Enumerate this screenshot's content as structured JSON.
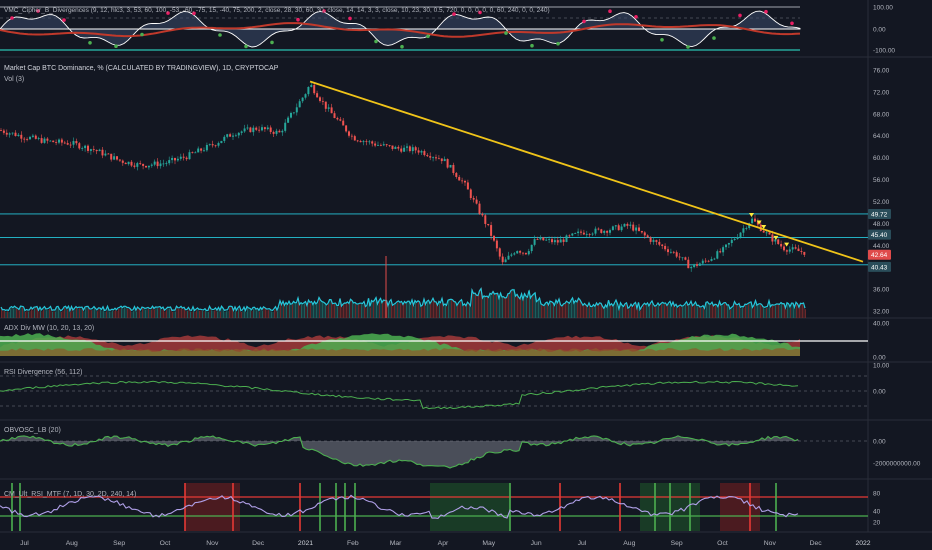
{
  "main": {
    "title": "Market Cap BTC Dominance, % (CALCULATED BY TRADINGVIEW), 1D, CRYPTOCAP",
    "vol_label": "Vol (3)"
  },
  "indicators": {
    "cipher": "VMC_Cipher_B_Divergences (9, 12, hlc3, 3, 53, 60, 100, -53, -60, -75, 15, -40, 75, 200, 2, close, 28, 30, 60, 30, close, 14, 14, 3, 3, close, 10, 23, 30, 0.5, 720, 0, 0, 0, 0, 0, 60, 240, 0, 0, 240)",
    "adx": "ADX Div MW (10, 20, 13, 20)",
    "rsi_div": "RSI Divergence (56, 112)",
    "obvosc": "OBVOSC_LB (20)",
    "cm_rsi": "CM_Ult_RSI_MTF (7, 1D, 30, 2D, 240, 14)"
  },
  "price_axis": {
    "cipher_ticks": [
      "100.00",
      "0.00",
      "-100.00"
    ],
    "main_ticks": [
      "76.00",
      "72.00",
      "68.00",
      "64.00",
      "60.00",
      "56.00",
      "52.00",
      "48.00",
      "44.00",
      "40.00",
      "36.00",
      "32.00"
    ],
    "adx_ticks": [
      "40.00",
      "0.00"
    ],
    "rsi_ticks": [
      "10.00",
      "0.00"
    ],
    "obv_ticks": [
      "0.00",
      "-2000000000.00"
    ],
    "cm_ticks": [
      "80",
      "40",
      "20"
    ],
    "tags": [
      {
        "label": "49.72",
        "color": "#2a4d5a"
      },
      {
        "label": "45.40",
        "color": "#2a4d5a"
      },
      {
        "label": "42.64",
        "color": "#e04b4b"
      },
      {
        "label": "40.43",
        "color": "#2a4d5a"
      }
    ]
  },
  "time_axis": [
    "Jul",
    "Aug",
    "Sep",
    "Oct",
    "Nov",
    "Dec",
    "2021",
    "Feb",
    "Mar",
    "Apr",
    "May",
    "Jun",
    "Jul",
    "Aug",
    "Sep",
    "Oct",
    "Nov",
    "Dec",
    "2022"
  ],
  "chart_data": {
    "type": "line",
    "title": "Market Cap BTC Dominance, % (CALCULATED BY TRADINGVIEW), 1D, CRYPTOCAP",
    "x": [
      "2020-06-15",
      "2020-07-01",
      "2020-07-15",
      "2020-08-01",
      "2020-08-15",
      "2020-09-01",
      "2020-09-15",
      "2020-10-01",
      "2020-10-15",
      "2020-11-01",
      "2020-11-15",
      "2020-12-01",
      "2020-12-15",
      "2021-01-01",
      "2021-01-04",
      "2021-01-15",
      "2021-02-01",
      "2021-02-15",
      "2021-03-01",
      "2021-03-15",
      "2021-04-01",
      "2021-04-15",
      "2021-05-01",
      "2021-05-10",
      "2021-05-19",
      "2021-05-25",
      "2021-06-01",
      "2021-06-15",
      "2021-07-01",
      "2021-07-15",
      "2021-08-01",
      "2021-08-15",
      "2021-09-01",
      "2021-09-10",
      "2021-09-20",
      "2021-10-01",
      "2021-10-12",
      "2021-10-20",
      "2021-11-01",
      "2021-11-10",
      "2021-11-25"
    ],
    "series": [
      {
        "values": [
          65.0,
          63.8,
          63.0,
          62.6,
          61.5,
          59.5,
          58.6,
          59.0,
          60.2,
          62.3,
          64.5,
          65.4,
          64.5,
          71.8,
          73.4,
          69.0,
          63.7,
          62.5,
          61.7,
          61.4,
          59.7,
          55.2,
          47.0,
          40.6,
          43.3,
          42.6,
          45.1,
          44.6,
          46.4,
          46.7,
          47.6,
          45.0,
          42.3,
          40.0,
          41.1,
          43.0,
          46.2,
          48.8,
          45.5,
          43.5,
          42.64
        ]
      }
    ],
    "ylim": [
      31,
      77
    ],
    "trendline": {
      "from": {
        "x": "2021-01-04",
        "y": 73.9
      },
      "to": {
        "x": "2022-01-01",
        "y": 41.0
      }
    },
    "horizontal_levels": [
      49.72,
      45.4,
      40.43
    ],
    "last_value": 42.64,
    "grid": true
  }
}
